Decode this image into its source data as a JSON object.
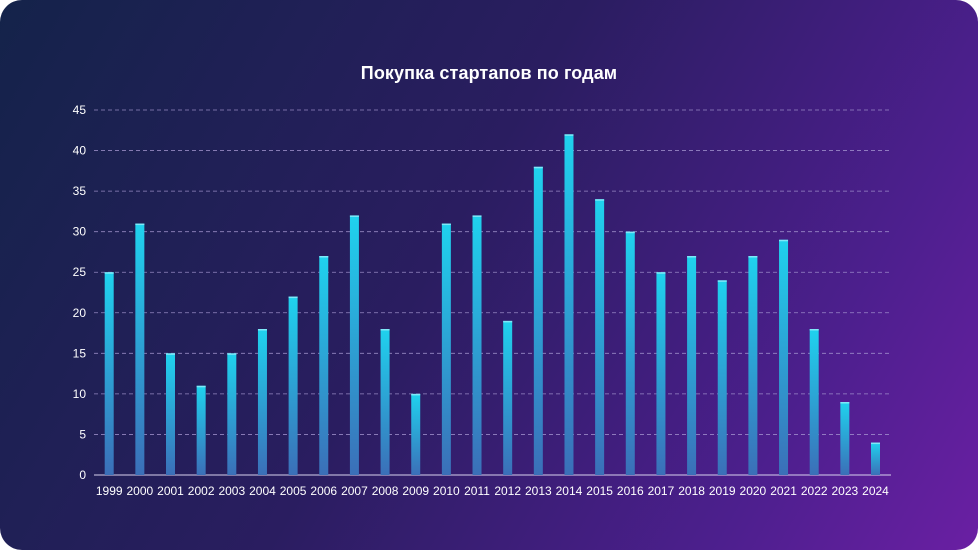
{
  "chart_data": {
    "type": "bar",
    "title": "Покупка стартапов по годам",
    "xlabel": "",
    "ylabel": "",
    "categories": [
      "1999",
      "2000",
      "2001",
      "2002",
      "2003",
      "2004",
      "2005",
      "2006",
      "2007",
      "2008",
      "2009",
      "2010",
      "2011",
      "2012",
      "2013",
      "2014",
      "2015",
      "2016",
      "2017",
      "2018",
      "2019",
      "2020",
      "2021",
      "2022",
      "2023",
      "2024"
    ],
    "values": [
      25,
      31,
      15,
      11,
      15,
      18,
      22,
      27,
      32,
      18,
      10,
      31,
      32,
      19,
      38,
      42,
      34,
      30,
      25,
      27,
      24,
      27,
      29,
      18,
      9,
      4
    ],
    "ylim": [
      0,
      45
    ],
    "yticks": [
      0,
      5,
      10,
      15,
      20,
      25,
      30,
      35,
      40,
      45
    ],
    "grid": true,
    "legend": "none",
    "colors": {
      "bar_top": "#1fd2ee",
      "bar_bottom": "#3b6fb8",
      "grid": "#a99bd4",
      "text": "#ffffff"
    }
  }
}
